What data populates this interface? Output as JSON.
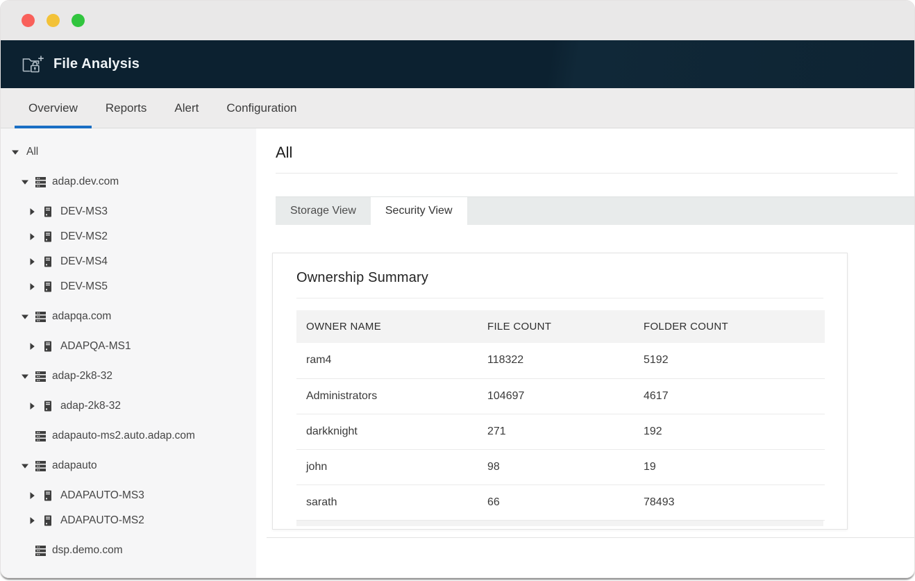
{
  "window": {
    "traffic_lights": [
      {
        "name": "close",
        "color": "#f9605a"
      },
      {
        "name": "minimize",
        "color": "#f3c238"
      },
      {
        "name": "maximize",
        "color": "#31c53e"
      }
    ]
  },
  "app_header": {
    "title": "File Analysis"
  },
  "nav": {
    "tabs": [
      {
        "label": "Overview",
        "active": true
      },
      {
        "label": "Reports",
        "active": false
      },
      {
        "label": "Alert",
        "active": false
      },
      {
        "label": "Configuration",
        "active": false
      }
    ]
  },
  "sidebar": {
    "tree": [
      {
        "label": "All",
        "level": 0,
        "caret": "expanded",
        "icon": null
      },
      {
        "label": "adap.dev.com",
        "level": 1,
        "caret": "expanded",
        "icon": "stack"
      },
      {
        "label": "DEV-MS3",
        "level": 2,
        "caret": "collapsed",
        "icon": "server"
      },
      {
        "label": "DEV-MS2",
        "level": 2,
        "caret": "collapsed",
        "icon": "server"
      },
      {
        "label": "DEV-MS4",
        "level": 2,
        "caret": "collapsed",
        "icon": "server"
      },
      {
        "label": "DEV-MS5",
        "level": 2,
        "caret": "collapsed",
        "icon": "server"
      },
      {
        "label": "adapqa.com",
        "level": 1,
        "caret": "expanded",
        "icon": "stack"
      },
      {
        "label": "ADAPQA-MS1",
        "level": 2,
        "caret": "collapsed",
        "icon": "server"
      },
      {
        "label": "adap-2k8-32",
        "level": 1,
        "caret": "expanded",
        "icon": "stack"
      },
      {
        "label": "adap-2k8-32",
        "level": 2,
        "caret": "collapsed",
        "icon": "server"
      },
      {
        "label": "adapauto-ms2.auto.adap.com",
        "level": 1,
        "caret": "none",
        "icon": "stack"
      },
      {
        "label": "adapauto",
        "level": 1,
        "caret": "expanded",
        "icon": "stack"
      },
      {
        "label": "ADAPAUTO-MS3",
        "level": 2,
        "caret": "collapsed",
        "icon": "server"
      },
      {
        "label": "ADAPAUTO-MS2",
        "level": 2,
        "caret": "collapsed",
        "icon": "server"
      },
      {
        "label": "dsp.demo.com",
        "level": 1,
        "caret": "none",
        "icon": "stack"
      }
    ]
  },
  "main": {
    "heading": "All",
    "view_tabs": [
      {
        "label": "Storage View",
        "active": false
      },
      {
        "label": "Security View",
        "active": true
      }
    ],
    "card": {
      "title": "Ownership Summary",
      "table": {
        "columns": [
          "OWNER NAME",
          "FILE COUNT",
          "FOLDER COUNT"
        ],
        "rows": [
          {
            "owner": "ram4",
            "file_count": "118322",
            "folder_count": "5192"
          },
          {
            "owner": "Administrators",
            "file_count": "104697",
            "folder_count": "4617"
          },
          {
            "owner": "darkknight",
            "file_count": "271",
            "folder_count": "192"
          },
          {
            "owner": "john",
            "file_count": "98",
            "folder_count": "19"
          },
          {
            "owner": "sarath",
            "file_count": "66",
            "folder_count": "78493"
          }
        ]
      }
    }
  },
  "colors": {
    "accent": "#1a6fc4",
    "app_header_bg": "#0c2130",
    "sidebar_bg": "#f6f6f7",
    "tab_strip_bg": "#e8ebeb"
  }
}
